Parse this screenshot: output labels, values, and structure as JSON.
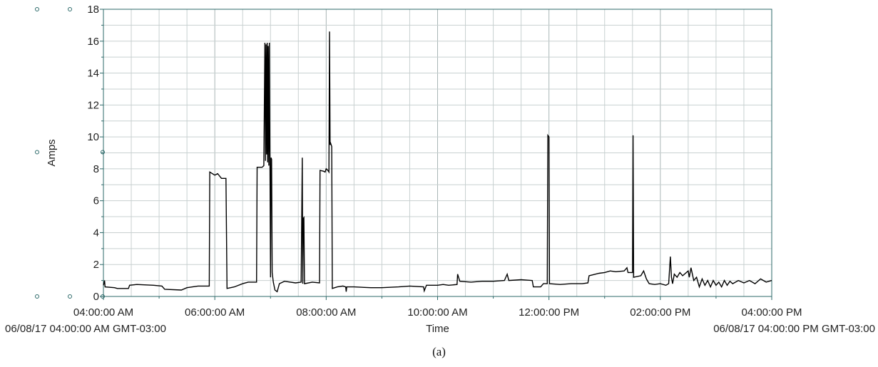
{
  "caption": "(a)",
  "colors": {
    "line": "#000000",
    "grid": "#c8d0d0",
    "grid_major": "#a9b6b6",
    "axis": "#2d6a6a",
    "axis_text": "#222222"
  },
  "chart_data": {
    "type": "line",
    "title": "",
    "xlabel": "Time",
    "ylabel": "Amps",
    "x_unit": "hours",
    "xlim": [
      4,
      16
    ],
    "ylim": [
      0,
      18
    ],
    "grid": true,
    "x_ticks": [
      {
        "x": 4,
        "label": "04:00:00 AM"
      },
      {
        "x": 6,
        "label": "06:00:00 AM"
      },
      {
        "x": 8,
        "label": "08:00:00 AM"
      },
      {
        "x": 10,
        "label": "10:00:00 AM"
      },
      {
        "x": 12,
        "label": "12:00:00 PM"
      },
      {
        "x": 14,
        "label": "02:00:00 PM"
      },
      {
        "x": 16,
        "label": "04:00:00 PM"
      }
    ],
    "y_ticks": [
      0,
      2,
      4,
      6,
      8,
      10,
      12,
      14,
      16,
      18
    ],
    "range_start_label": "06/08/17 04:00:00 AM GMT-03:00",
    "range_end_label": "06/08/17 04:00:00 PM GMT-03:00",
    "series": [
      {
        "values": [
          [
            4.0,
            0.7
          ],
          [
            4.02,
            1.0
          ],
          [
            4.03,
            0.6
          ],
          [
            4.2,
            0.55
          ],
          [
            4.25,
            0.5
          ],
          [
            4.45,
            0.5
          ],
          [
            4.47,
            0.7
          ],
          [
            4.6,
            0.75
          ],
          [
            4.9,
            0.7
          ],
          [
            5.05,
            0.65
          ],
          [
            5.1,
            0.45
          ],
          [
            5.4,
            0.4
          ],
          [
            5.5,
            0.55
          ],
          [
            5.7,
            0.65
          ],
          [
            5.9,
            0.65
          ],
          [
            5.91,
            7.8
          ],
          [
            6.0,
            7.6
          ],
          [
            6.05,
            7.7
          ],
          [
            6.12,
            7.4
          ],
          [
            6.2,
            7.4
          ],
          [
            6.22,
            0.5
          ],
          [
            6.35,
            0.6
          ],
          [
            6.5,
            0.8
          ],
          [
            6.6,
            0.9
          ],
          [
            6.75,
            0.9
          ],
          [
            6.76,
            8.1
          ],
          [
            6.85,
            8.1
          ],
          [
            6.88,
            8.2
          ],
          [
            6.9,
            15.9
          ],
          [
            6.91,
            8.5
          ],
          [
            6.92,
            15.8
          ],
          [
            6.93,
            8.9
          ],
          [
            6.94,
            15.9
          ],
          [
            6.95,
            8.4
          ],
          [
            6.96,
            15.7
          ],
          [
            6.97,
            8.2
          ],
          [
            6.98,
            15.9
          ],
          [
            6.99,
            8.5
          ],
          [
            7.0,
            1.2
          ],
          [
            7.01,
            8.7
          ],
          [
            7.02,
            8.6
          ],
          [
            7.03,
            1.5
          ],
          [
            7.05,
            0.9
          ],
          [
            7.08,
            0.4
          ],
          [
            7.12,
            0.3
          ],
          [
            7.16,
            0.8
          ],
          [
            7.25,
            0.95
          ],
          [
            7.45,
            0.85
          ],
          [
            7.55,
            0.9
          ],
          [
            7.57,
            8.7
          ],
          [
            7.58,
            0.8
          ],
          [
            7.59,
            4.9
          ],
          [
            7.6,
            4.95
          ],
          [
            7.61,
            0.8
          ],
          [
            7.75,
            0.9
          ],
          [
            7.88,
            0.85
          ],
          [
            7.89,
            7.9
          ],
          [
            7.95,
            7.85
          ],
          [
            7.98,
            7.8
          ],
          [
            8.0,
            8.0
          ],
          [
            8.03,
            7.9
          ],
          [
            8.05,
            7.8
          ],
          [
            8.06,
            16.6
          ],
          [
            8.07,
            9.5
          ],
          [
            8.08,
            9.6
          ],
          [
            8.1,
            9.4
          ],
          [
            8.11,
            0.5
          ],
          [
            8.2,
            0.6
          ],
          [
            8.3,
            0.65
          ],
          [
            8.35,
            0.6
          ],
          [
            8.36,
            0.3
          ],
          [
            8.37,
            0.6
          ],
          [
            8.5,
            0.6
          ],
          [
            8.8,
            0.55
          ],
          [
            9.0,
            0.55
          ],
          [
            9.3,
            0.6
          ],
          [
            9.5,
            0.65
          ],
          [
            9.75,
            0.6
          ],
          [
            9.76,
            0.35
          ],
          [
            9.8,
            0.7
          ],
          [
            10.0,
            0.7
          ],
          [
            10.1,
            0.75
          ],
          [
            10.2,
            0.7
          ],
          [
            10.35,
            0.75
          ],
          [
            10.36,
            1.4
          ],
          [
            10.4,
            0.95
          ],
          [
            10.6,
            0.9
          ],
          [
            10.8,
            0.95
          ],
          [
            11.0,
            0.95
          ],
          [
            11.2,
            1.0
          ],
          [
            11.25,
            1.4
          ],
          [
            11.28,
            1.0
          ],
          [
            11.5,
            1.05
          ],
          [
            11.7,
            1.0
          ],
          [
            11.72,
            0.6
          ],
          [
            11.85,
            0.6
          ],
          [
            11.9,
            0.8
          ],
          [
            11.97,
            0.8
          ],
          [
            11.98,
            10.1
          ],
          [
            12.0,
            10.0
          ],
          [
            12.01,
            0.8
          ],
          [
            12.2,
            0.75
          ],
          [
            12.4,
            0.8
          ],
          [
            12.6,
            0.8
          ],
          [
            12.7,
            0.85
          ],
          [
            12.72,
            1.3
          ],
          [
            12.9,
            1.45
          ],
          [
            13.0,
            1.5
          ],
          [
            13.1,
            1.6
          ],
          [
            13.2,
            1.55
          ],
          [
            13.35,
            1.6
          ],
          [
            13.4,
            1.8
          ],
          [
            13.42,
            1.5
          ],
          [
            13.5,
            1.5
          ],
          [
            13.51,
            10.1
          ],
          [
            13.52,
            1.2
          ],
          [
            13.65,
            1.3
          ],
          [
            13.7,
            1.6
          ],
          [
            13.75,
            1.1
          ],
          [
            13.8,
            0.8
          ],
          [
            13.9,
            0.75
          ],
          [
            14.0,
            0.8
          ],
          [
            14.1,
            0.7
          ],
          [
            14.15,
            0.8
          ],
          [
            14.18,
            2.5
          ],
          [
            14.2,
            1.2
          ],
          [
            14.22,
            0.8
          ],
          [
            14.25,
            1.4
          ],
          [
            14.3,
            1.2
          ],
          [
            14.35,
            1.5
          ],
          [
            14.4,
            1.3
          ],
          [
            14.5,
            1.6
          ],
          [
            14.52,
            1.2
          ],
          [
            14.55,
            1.8
          ],
          [
            14.6,
            1.0
          ],
          [
            14.65,
            1.2
          ],
          [
            14.7,
            0.6
          ],
          [
            14.75,
            1.1
          ],
          [
            14.8,
            0.7
          ],
          [
            14.85,
            1.0
          ],
          [
            14.9,
            0.6
          ],
          [
            14.95,
            1.0
          ],
          [
            15.0,
            0.7
          ],
          [
            15.05,
            0.9
          ],
          [
            15.1,
            0.6
          ],
          [
            15.15,
            1.0
          ],
          [
            15.2,
            0.7
          ],
          [
            15.25,
            0.95
          ],
          [
            15.3,
            0.8
          ],
          [
            15.4,
            1.0
          ],
          [
            15.5,
            0.85
          ],
          [
            15.6,
            1.0
          ],
          [
            15.7,
            0.8
          ],
          [
            15.8,
            1.1
          ],
          [
            15.9,
            0.9
          ],
          [
            16.0,
            1.0
          ]
        ]
      }
    ]
  }
}
